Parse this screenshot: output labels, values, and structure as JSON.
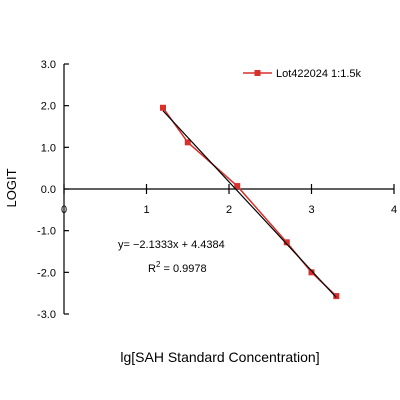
{
  "chart_data": {
    "type": "scatter",
    "xlabel": "lg[SAH Standard Concentration]",
    "ylabel": "LOGIT",
    "xlim": [
      0,
      4
    ],
    "ylim": [
      -3,
      3
    ],
    "x_ticks": [
      0,
      1,
      2,
      3,
      4
    ],
    "y_ticks": [
      3,
      2,
      1,
      0,
      -1,
      -2,
      -3
    ],
    "x_tick_labels": [
      "0",
      "1",
      "2",
      "3",
      "4"
    ],
    "y_tick_labels": [
      "3.0",
      "2.0",
      "1.0",
      "0.0",
      "-1.0",
      "-2.0",
      "-3.0"
    ],
    "grid": false,
    "legend_position": "top-right",
    "series": [
      {
        "name": "Lot422024 1:1.5k",
        "color": "#d9302c",
        "marker": "square",
        "x": [
          1.2,
          1.5,
          2.1,
          2.7,
          3.0,
          3.3
        ],
        "y": [
          1.95,
          1.12,
          0.07,
          -1.28,
          -2.0,
          -2.57
        ]
      }
    ],
    "trendline": {
      "color": "#000000",
      "slope": -2.1333,
      "intercept": 4.4384,
      "x_range": [
        1.2,
        3.3
      ]
    },
    "annotations": {
      "equation": "y= −2.1333x + 4.4384",
      "r2_prefix": "R",
      "r2_sup": "2",
      "r2_value": " = 0.9978"
    }
  }
}
